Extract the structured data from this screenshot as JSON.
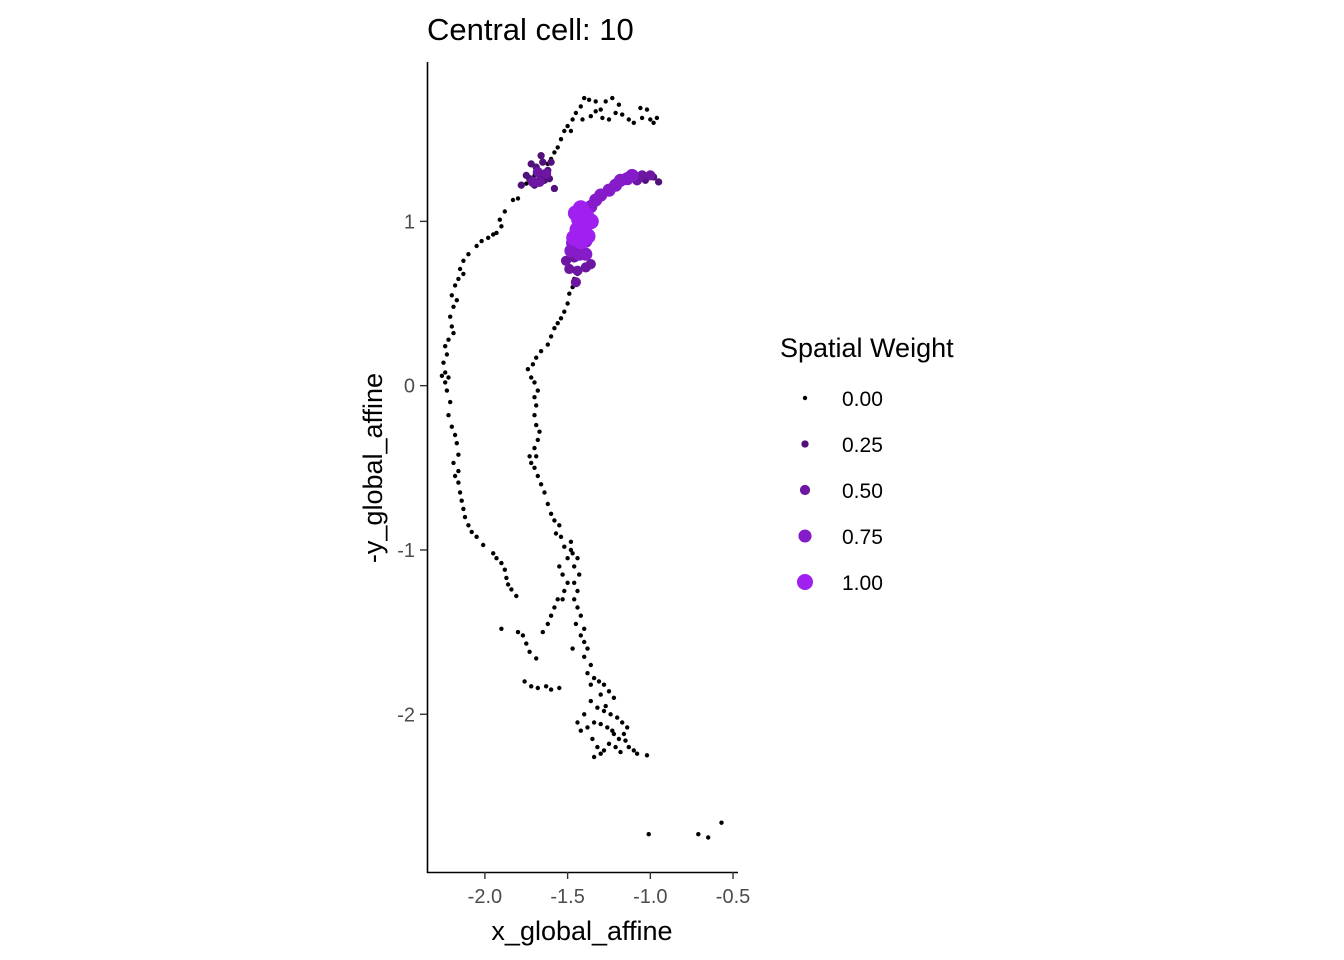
{
  "chart_data": {
    "type": "scatter",
    "title": "Central cell: 10",
    "xlabel": "x_global_affine",
    "ylabel": "-y_global_affine",
    "xlim": [
      -2.35,
      -0.47
    ],
    "ylim": [
      -2.96,
      1.97
    ],
    "x_ticks": [
      -2.0,
      -1.5,
      -1.0,
      -0.5
    ],
    "x_tick_labels": [
      "-2.0",
      "-1.5",
      "-1.0",
      "-0.5"
    ],
    "y_ticks": [
      1,
      0,
      -1,
      -2
    ],
    "y_tick_labels": [
      "1",
      "0",
      "-1",
      "-2"
    ],
    "grid": false,
    "legend": {
      "title": "Spatial Weight",
      "position": "right",
      "entries": [
        {
          "label": "0.00",
          "value": 0.0
        },
        {
          "label": "0.25",
          "value": 0.25
        },
        {
          "label": "0.50",
          "value": 0.5
        },
        {
          "label": "0.75",
          "value": 0.75
        },
        {
          "label": "1.00",
          "value": 1.0
        }
      ]
    },
    "color_scale": {
      "low": "#000000",
      "high": "#a020f0"
    },
    "series": [
      {
        "points": [
          [
            -1.4,
            1.75
          ],
          [
            -1.37,
            1.74
          ],
          [
            -1.33,
            1.73
          ],
          [
            -1.27,
            1.73
          ],
          [
            -1.23,
            1.75
          ],
          [
            -1.19,
            1.71
          ],
          [
            -1.3,
            1.68
          ],
          [
            -1.42,
            1.7
          ],
          [
            -1.45,
            1.66
          ],
          [
            -1.47,
            1.62
          ],
          [
            -1.5,
            1.58
          ],
          [
            -1.52,
            1.55
          ],
          [
            -1.48,
            1.55
          ],
          [
            -1.41,
            1.62
          ],
          [
            -1.36,
            1.64
          ],
          [
            -1.33,
            1.67
          ],
          [
            -1.29,
            1.63
          ],
          [
            -1.25,
            1.62
          ],
          [
            -1.21,
            1.66
          ],
          [
            -1.17,
            1.65
          ],
          [
            -1.13,
            1.62
          ],
          [
            -1.1,
            1.6
          ],
          [
            -1.06,
            1.69
          ],
          [
            -1.02,
            1.68
          ],
          [
            -1.0,
            1.62
          ],
          [
            -0.98,
            1.6
          ],
          [
            -0.96,
            1.63
          ],
          [
            -1.05,
            1.63
          ],
          [
            -1.54,
            1.5
          ],
          [
            -1.56,
            1.45
          ],
          [
            -1.58,
            1.42
          ],
          [
            -1.6,
            1.38
          ],
          [
            -1.62,
            1.35
          ],
          [
            -1.66,
            1.3
          ],
          [
            -1.7,
            1.28
          ],
          [
            -1.75,
            1.23
          ],
          [
            -1.8,
            1.14
          ],
          [
            -1.83,
            1.13
          ],
          [
            -1.88,
            1.06
          ],
          [
            -1.91,
            1.01
          ],
          [
            -1.9,
            0.97
          ],
          [
            -1.93,
            0.93
          ],
          [
            -1.95,
            0.92
          ],
          [
            -1.98,
            0.9
          ],
          [
            -2.02,
            0.88
          ],
          [
            -2.05,
            0.85
          ],
          [
            -2.1,
            0.8
          ],
          [
            -2.13,
            0.76
          ],
          [
            -2.15,
            0.71
          ],
          [
            -2.13,
            0.68
          ],
          [
            -2.16,
            0.65
          ],
          [
            -2.18,
            0.61
          ],
          [
            -2.2,
            0.55
          ],
          [
            -2.17,
            0.52
          ],
          [
            -2.19,
            0.48
          ],
          [
            -2.21,
            0.42
          ],
          [
            -2.2,
            0.36
          ],
          [
            -2.19,
            0.32
          ],
          [
            -2.22,
            0.28
          ],
          [
            -2.24,
            0.24
          ],
          [
            -2.23,
            0.19
          ],
          [
            -2.25,
            0.14
          ],
          [
            -2.24,
            0.08
          ],
          [
            -2.26,
            0.06
          ],
          [
            -2.22,
            0.05
          ],
          [
            -2.24,
            0.02
          ],
          [
            -2.23,
            -0.03
          ],
          [
            -2.21,
            -0.1
          ],
          [
            -2.22,
            -0.18
          ],
          [
            -2.2,
            -0.25
          ],
          [
            -2.18,
            -0.3
          ],
          [
            -2.17,
            -0.35
          ],
          [
            -2.16,
            -0.42
          ],
          [
            -2.19,
            -0.47
          ],
          [
            -2.16,
            -0.52
          ],
          [
            -2.18,
            -0.55
          ],
          [
            -2.16,
            -0.59
          ],
          [
            -2.15,
            -0.65
          ],
          [
            -2.14,
            -0.7
          ],
          [
            -2.13,
            -0.75
          ],
          [
            -2.12,
            -0.8
          ],
          [
            -2.1,
            -0.85
          ],
          [
            -2.08,
            -0.89
          ],
          [
            -2.05,
            -0.92
          ],
          [
            -2.01,
            -0.97
          ],
          [
            -1.95,
            -1.02
          ],
          [
            -1.93,
            -1.05
          ],
          [
            -1.9,
            -1.08
          ],
          [
            -1.88,
            -1.12
          ],
          [
            -1.87,
            -1.17
          ],
          [
            -1.86,
            -1.21
          ],
          [
            -1.84,
            -1.24
          ],
          [
            -1.81,
            -1.28
          ],
          [
            -1.9,
            -1.48
          ],
          [
            -1.8,
            -1.5
          ],
          [
            -1.77,
            -1.52
          ],
          [
            -1.75,
            -1.57
          ],
          [
            -1.73,
            -1.62
          ],
          [
            -1.69,
            -1.66
          ],
          [
            -1.76,
            -1.8
          ],
          [
            -1.72,
            -1.83
          ],
          [
            -1.68,
            -1.84
          ],
          [
            -1.63,
            -1.83
          ],
          [
            -1.6,
            -1.85
          ],
          [
            -1.55,
            -1.84
          ],
          [
            -1.65,
            -1.5
          ],
          [
            -1.62,
            -1.45
          ],
          [
            -1.6,
            -1.4
          ],
          [
            -1.58,
            -1.35
          ],
          [
            -1.56,
            -1.3
          ],
          [
            -1.52,
            -1.25
          ],
          [
            -1.5,
            -1.2
          ],
          [
            -1.53,
            -1.15
          ],
          [
            -1.55,
            -1.1
          ],
          [
            -1.5,
            -1.05
          ],
          [
            -1.47,
            -1.02
          ],
          [
            -1.52,
            -0.98
          ],
          [
            -1.48,
            -0.95
          ],
          [
            -1.54,
            -0.92
          ],
          [
            -1.57,
            -0.9
          ],
          [
            -1.55,
            -0.85
          ],
          [
            -1.58,
            -0.82
          ],
          [
            -1.6,
            -0.78
          ],
          [
            -1.62,
            -0.72
          ],
          [
            -1.64,
            -0.65
          ],
          [
            -1.66,
            -0.6
          ],
          [
            -1.68,
            -0.55
          ],
          [
            -1.7,
            -0.5
          ],
          [
            -1.72,
            -0.47
          ],
          [
            -1.73,
            -0.43
          ],
          [
            -1.69,
            -0.43
          ],
          [
            -1.7,
            -0.38
          ],
          [
            -1.68,
            -0.33
          ],
          [
            -1.67,
            -0.28
          ],
          [
            -1.69,
            -0.24
          ],
          [
            -1.7,
            -0.18
          ],
          [
            -1.69,
            -0.12
          ],
          [
            -1.7,
            -0.07
          ],
          [
            -1.68,
            -0.03
          ],
          [
            -1.7,
            0.02
          ],
          [
            -1.72,
            0.05
          ],
          [
            -1.74,
            0.1
          ],
          [
            -1.71,
            0.13
          ],
          [
            -1.69,
            0.17
          ],
          [
            -1.66,
            0.21
          ],
          [
            -1.62,
            0.25
          ],
          [
            -1.6,
            0.3
          ],
          [
            -1.58,
            0.35
          ],
          [
            -1.56,
            0.38
          ],
          [
            -1.54,
            0.41
          ],
          [
            -1.52,
            0.45
          ],
          [
            -1.5,
            0.5
          ],
          [
            -1.49,
            0.56
          ],
          [
            -1.47,
            0.6
          ],
          [
            -1.46,
            0.65
          ],
          [
            -1.44,
            0.68
          ],
          [
            -1.44,
            -1.05
          ],
          [
            -1.46,
            -1.1
          ],
          [
            -1.43,
            -1.15
          ],
          [
            -1.46,
            -1.2
          ],
          [
            -1.44,
            -1.25
          ],
          [
            -1.46,
            -1.3
          ],
          [
            -1.44,
            -1.35
          ],
          [
            -1.42,
            -1.4
          ],
          [
            -1.45,
            -1.45
          ],
          [
            -1.4,
            -1.48
          ],
          [
            -1.42,
            -1.52
          ],
          [
            -1.4,
            -1.56
          ],
          [
            -1.38,
            -1.6
          ],
          [
            -1.4,
            -1.65
          ],
          [
            -1.36,
            -1.7
          ],
          [
            -1.38,
            -1.75
          ],
          [
            -1.34,
            -1.78
          ],
          [
            -1.31,
            -1.8
          ],
          [
            -1.28,
            -1.82
          ],
          [
            -1.25,
            -1.86
          ],
          [
            -1.22,
            -1.9
          ],
          [
            -1.3,
            -1.88
          ],
          [
            -1.36,
            -1.92
          ],
          [
            -1.32,
            -1.96
          ],
          [
            -1.28,
            -1.98
          ],
          [
            -1.24,
            -2.0
          ],
          [
            -1.2,
            -2.02
          ],
          [
            -1.17,
            -2.05
          ],
          [
            -1.14,
            -2.08
          ],
          [
            -1.16,
            -2.12
          ],
          [
            -1.19,
            -2.15
          ],
          [
            -1.22,
            -2.12
          ],
          [
            -1.26,
            -2.08
          ],
          [
            -1.3,
            -2.06
          ],
          [
            -1.34,
            -2.05
          ],
          [
            -1.38,
            -2.08
          ],
          [
            -1.42,
            -2.1
          ],
          [
            -1.44,
            -2.05
          ],
          [
            -1.4,
            -2.0
          ],
          [
            -1.35,
            -2.15
          ],
          [
            -1.32,
            -2.2
          ],
          [
            -1.28,
            -2.22
          ],
          [
            -1.25,
            -2.18
          ],
          [
            -1.21,
            -2.2
          ],
          [
            -1.18,
            -2.23
          ],
          [
            -1.13,
            -2.2
          ],
          [
            -1.1,
            -2.22
          ],
          [
            -1.08,
            -2.24
          ],
          [
            -1.02,
            -2.25
          ],
          [
            -1.3,
            -2.24
          ],
          [
            -1.34,
            -2.26
          ],
          [
            -1.15,
            -2.16
          ],
          [
            -1.48,
            -1.0
          ],
          [
            -1.53,
            -1.3
          ],
          [
            -1.47,
            -1.6
          ],
          [
            -1.36,
            -1.82
          ],
          [
            -1.27,
            -1.95
          ],
          [
            -1.23,
            -2.1
          ],
          [
            -1.01,
            -2.73
          ],
          [
            -0.71,
            -2.73
          ],
          [
            -0.65,
            -2.75
          ],
          [
            -0.57,
            -2.66
          ]
        ],
        "weight": 0.0
      },
      {
        "points": [
          [
            -1.7,
            1.22
          ],
          [
            -1.73,
            1.26
          ],
          [
            -1.67,
            1.28
          ],
          [
            -1.62,
            1.31
          ],
          [
            -1.64,
            1.25
          ],
          [
            -1.6,
            1.36
          ],
          [
            -1.65,
            1.36
          ],
          [
            -1.69,
            1.33
          ],
          [
            -1.72,
            1.35
          ],
          [
            -1.58,
            1.2
          ],
          [
            -1.75,
            1.28
          ],
          [
            -1.78,
            1.22
          ],
          [
            -1.66,
            1.4
          ],
          [
            -1.61,
            1.26
          ],
          [
            -1.03,
            1.25
          ],
          [
            -0.98,
            1.27
          ],
          [
            -0.95,
            1.24
          ]
        ],
        "weight": 0.25
      },
      {
        "points": [
          [
            -1.68,
            1.3
          ],
          [
            -1.63,
            1.29
          ],
          [
            -1.67,
            1.24
          ],
          [
            -1.71,
            1.24
          ],
          [
            -1.45,
            0.63
          ],
          [
            -1.49,
            0.71
          ],
          [
            -1.51,
            0.76
          ],
          [
            -1.44,
            0.7
          ],
          [
            -1.39,
            0.72
          ],
          [
            -1.36,
            0.74
          ],
          [
            -1.08,
            1.25
          ],
          [
            -1.05,
            1.28
          ],
          [
            -1.0,
            1.28
          ],
          [
            -1.46,
            0.78
          ]
        ],
        "weight": 0.5
      },
      {
        "points": [
          [
            -1.14,
            1.26
          ],
          [
            -1.18,
            1.25
          ],
          [
            -1.21,
            1.22
          ],
          [
            -1.25,
            1.19
          ],
          [
            -1.3,
            1.16
          ],
          [
            -1.33,
            1.13
          ],
          [
            -1.36,
            1.09
          ],
          [
            -1.4,
            1.05
          ],
          [
            -1.43,
            0.98
          ],
          [
            -1.45,
            0.92
          ],
          [
            -1.47,
            0.87
          ],
          [
            -1.48,
            0.82
          ],
          [
            -1.43,
            0.8
          ],
          [
            -1.39,
            0.8
          ],
          [
            -1.45,
            0.84
          ],
          [
            -1.39,
            0.88
          ],
          [
            -1.41,
            0.93
          ],
          [
            -1.11,
            1.28
          ]
        ],
        "weight": 0.75
      },
      {
        "points": [
          [
            -1.42,
            1.08
          ],
          [
            -1.39,
            1.04
          ],
          [
            -1.43,
            1.01
          ],
          [
            -1.4,
            0.97
          ],
          [
            -1.44,
            0.95
          ],
          [
            -1.46,
            0.9
          ],
          [
            -1.42,
            0.88
          ],
          [
            -1.38,
            0.91
          ],
          [
            -1.45,
            1.05
          ],
          [
            -1.36,
            1.0
          ]
        ],
        "weight": 1.0
      }
    ]
  }
}
